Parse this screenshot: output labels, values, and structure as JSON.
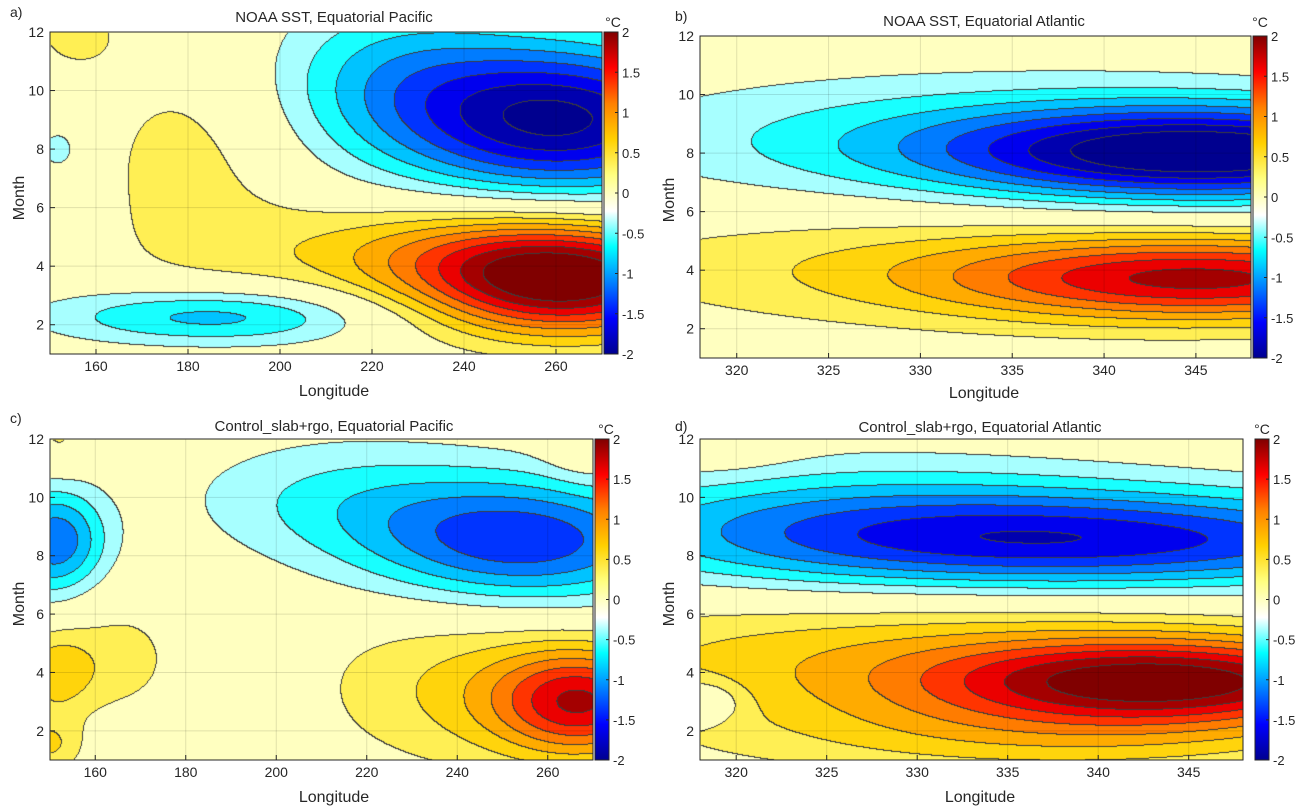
{
  "figure": {
    "colorbar_unit": "°C",
    "colorbar_ticks": [
      -2,
      -1.5,
      -1,
      -0.5,
      0,
      0.5,
      1,
      1.5,
      2
    ],
    "colormap": [
      "#00008f",
      "#0000ff",
      "#0080ff",
      "#00ffff",
      "#ffffff",
      "#ffff80",
      "#ffd000",
      "#ff8000",
      "#ff0000",
      "#800000"
    ]
  },
  "chart_data": [
    {
      "type": "heatmap",
      "panel_label": "a)",
      "title": "NOAA SST, Equatorial Pacific",
      "xlabel": "Longitude",
      "ylabel": "Month",
      "xlim": [
        150,
        270
      ],
      "ylim": [
        1,
        12
      ],
      "xticks": [
        160,
        180,
        200,
        220,
        240,
        260
      ],
      "yticks": [
        2,
        4,
        6,
        8,
        10,
        12
      ],
      "colorbar_range": [
        -2,
        2
      ],
      "features": [
        {
          "lon": 262,
          "month": 3.5,
          "value": 2.1,
          "sx": 22,
          "sy": 1.3
        },
        {
          "lon": 235,
          "month": 4.5,
          "value": 0.7,
          "sx": 30,
          "sy": 1.2
        },
        {
          "lon": 180,
          "month": 7.5,
          "value": 0.35,
          "sx": 16,
          "sy": 3.0
        },
        {
          "lon": 262,
          "month": 9.0,
          "value": -2.0,
          "sx": 25,
          "sy": 1.8
        },
        {
          "lon": 225,
          "month": 10.5,
          "value": -0.7,
          "sx": 20,
          "sy": 2.0
        },
        {
          "lon": 185,
          "month": 2.3,
          "value": -0.9,
          "sx": 25,
          "sy": 0.7
        },
        {
          "lon": 152,
          "month": 8.0,
          "value": -0.4,
          "sx": 4,
          "sy": 0.7
        },
        {
          "lon": 155,
          "month": 12.0,
          "value": 0.3,
          "sx": 8,
          "sy": 1.0
        }
      ]
    },
    {
      "type": "heatmap",
      "panel_label": "b)",
      "title": "NOAA SST, Equatorial Atlantic",
      "xlabel": "Longitude",
      "ylabel": "Month",
      "xlim": [
        318,
        348
      ],
      "ylim": [
        1,
        12
      ],
      "xticks": [
        320,
        325,
        330,
        335,
        340,
        345
      ],
      "yticks": [
        2,
        4,
        6,
        8,
        10,
        12
      ],
      "colorbar_range": [
        -2,
        2
      ],
      "features": [
        {
          "lon": 346,
          "month": 8.0,
          "value": -2.0,
          "sx": 10,
          "sy": 1.1
        },
        {
          "lon": 333,
          "month": 8.5,
          "value": -0.6,
          "sx": 15,
          "sy": 1.6
        },
        {
          "lon": 346,
          "month": 3.7,
          "value": 1.6,
          "sx": 10,
          "sy": 1.0
        },
        {
          "lon": 330,
          "month": 4.2,
          "value": 0.45,
          "sx": 15,
          "sy": 1.5
        }
      ]
    },
    {
      "type": "heatmap",
      "panel_label": "c)",
      "title": "Control_slab+rgo, Equatorial Pacific",
      "xlabel": "Longitude",
      "ylabel": "Month",
      "xlim": [
        150,
        270
      ],
      "ylim": [
        1,
        12
      ],
      "xticks": [
        160,
        180,
        200,
        220,
        240,
        260
      ],
      "yticks": [
        2,
        4,
        6,
        8,
        10,
        12
      ],
      "colorbar_range": [
        -2,
        2
      ],
      "features": [
        {
          "lon": 268,
          "month": 3.0,
          "value": 1.6,
          "sx": 14,
          "sy": 1.3
        },
        {
          "lon": 240,
          "month": 3.5,
          "value": 0.5,
          "sx": 22,
          "sy": 2.0
        },
        {
          "lon": 255,
          "month": 8.5,
          "value": -1.4,
          "sx": 25,
          "sy": 1.5
        },
        {
          "lon": 215,
          "month": 10.0,
          "value": -0.5,
          "sx": 25,
          "sy": 1.5
        },
        {
          "lon": 151,
          "month": 8.5,
          "value": -1.2,
          "sx": 8,
          "sy": 1.3
        },
        {
          "lon": 151,
          "month": 4.0,
          "value": 0.6,
          "sx": 6,
          "sy": 1.0
        },
        {
          "lon": 165,
          "month": 4.5,
          "value": 0.35,
          "sx": 10,
          "sy": 1.5
        },
        {
          "lon": 152,
          "month": 12.0,
          "value": 0.3,
          "sx": 5,
          "sy": 0.8
        },
        {
          "lon": 268,
          "month": 12.0,
          "value": 0.35,
          "sx": 6,
          "sy": 0.9
        },
        {
          "lon": 150,
          "month": 1.5,
          "value": 0.5,
          "sx": 5,
          "sy": 0.7
        }
      ]
    },
    {
      "type": "heatmap",
      "panel_label": "d)",
      "title": "Control_slab+rgo, Equatorial Atlantic",
      "xlabel": "Longitude",
      "ylabel": "Month",
      "xlim": [
        318,
        348
      ],
      "ylim": [
        1,
        12
      ],
      "xticks": [
        320,
        325,
        330,
        335,
        340,
        345
      ],
      "yticks": [
        2,
        4,
        6,
        8,
        10,
        12
      ],
      "colorbar_range": [
        -2,
        2
      ],
      "features": [
        {
          "lon": 344,
          "month": 3.7,
          "value": 1.8,
          "sx": 9,
          "sy": 1.0
        },
        {
          "lon": 330,
          "month": 4.5,
          "value": 0.7,
          "sx": 16,
          "sy": 1.8
        },
        {
          "lon": 338,
          "month": 1.8,
          "value": 0.5,
          "sx": 12,
          "sy": 1.0
        },
        {
          "lon": 342,
          "month": 8.5,
          "value": -1.4,
          "sx": 14,
          "sy": 1.2
        },
        {
          "lon": 326,
          "month": 9.0,
          "value": -0.8,
          "sx": 12,
          "sy": 1.6
        },
        {
          "lon": 319,
          "month": 12.0,
          "value": 0.3,
          "sx": 3,
          "sy": 0.8
        },
        {
          "lon": 318,
          "month": 3.0,
          "value": -0.6,
          "sx": 1.5,
          "sy": 0.5
        }
      ]
    }
  ]
}
